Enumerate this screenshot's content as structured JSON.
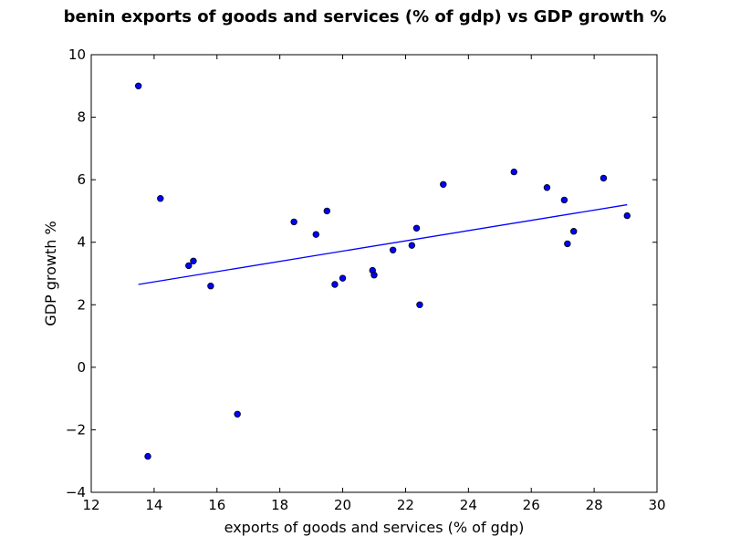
{
  "chart_data": {
    "type": "scatter",
    "title": "benin exports of goods and services (% of gdp) vs GDP growth %",
    "xlabel": "exports of goods and services (% of gdp)",
    "ylabel": "GDP growth %",
    "xlim": [
      12,
      30
    ],
    "ylim": [
      -4,
      10
    ],
    "xticks": [
      12,
      14,
      16,
      18,
      20,
      22,
      24,
      26,
      28,
      30
    ],
    "yticks": [
      -4,
      -2,
      0,
      2,
      4,
      6,
      8,
      10
    ],
    "grid": false,
    "colors": {
      "points": "#0000ff",
      "trendline": "#0000ff"
    },
    "points": [
      {
        "x": 13.5,
        "y": 9.0
      },
      {
        "x": 13.8,
        "y": -2.85
      },
      {
        "x": 14.2,
        "y": 5.4
      },
      {
        "x": 15.1,
        "y": 3.25
      },
      {
        "x": 15.25,
        "y": 3.4
      },
      {
        "x": 15.8,
        "y": 2.6
      },
      {
        "x": 16.65,
        "y": -1.5
      },
      {
        "x": 18.45,
        "y": 4.65
      },
      {
        "x": 19.15,
        "y": 4.25
      },
      {
        "x": 19.5,
        "y": 5.0
      },
      {
        "x": 19.75,
        "y": 2.65
      },
      {
        "x": 20.0,
        "y": 2.85
      },
      {
        "x": 20.95,
        "y": 3.1
      },
      {
        "x": 21.0,
        "y": 2.95
      },
      {
        "x": 21.6,
        "y": 3.75
      },
      {
        "x": 22.2,
        "y": 3.9
      },
      {
        "x": 22.35,
        "y": 4.45
      },
      {
        "x": 22.45,
        "y": 2.0
      },
      {
        "x": 23.2,
        "y": 5.85
      },
      {
        "x": 25.45,
        "y": 6.25
      },
      {
        "x": 26.5,
        "y": 5.75
      },
      {
        "x": 27.05,
        "y": 5.35
      },
      {
        "x": 27.15,
        "y": 3.95
      },
      {
        "x": 27.35,
        "y": 4.35
      },
      {
        "x": 28.3,
        "y": 6.05
      },
      {
        "x": 29.05,
        "y": 4.85
      }
    ],
    "trendline": {
      "x": [
        13.5,
        29.05
      ],
      "y": [
        2.65,
        5.2
      ]
    }
  }
}
